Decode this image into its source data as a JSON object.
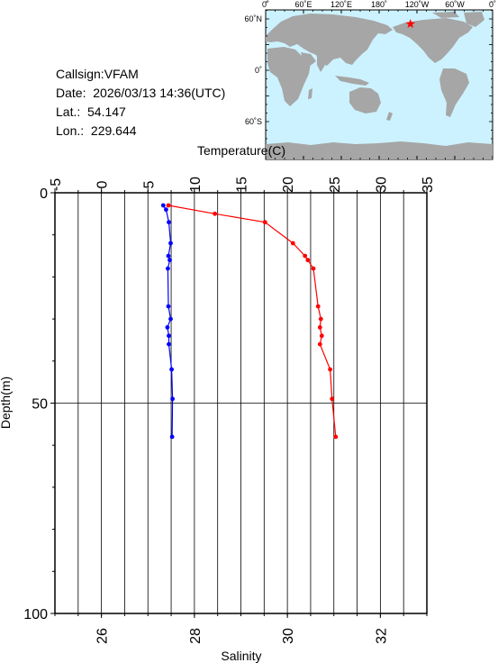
{
  "meta": {
    "callsign": "Callsign:VFAM",
    "date": "Date:  2026/03/13 14:36(UTC)",
    "lat": "Lat.:  54.147",
    "lon": "Lon.:  229.644"
  },
  "map": {
    "top_ticks": [
      "0˚",
      "60˚E",
      "120˚E",
      "180˚",
      "120˚W",
      "60˚W",
      "0˚"
    ],
    "lat_ticks": [
      "60˚N",
      "0˚",
      "60˚S"
    ],
    "marker": {
      "lat": 54.147,
      "lon": 229.644
    },
    "colors": {
      "ocean": "#ccf2ff",
      "land": "#a6a6a6",
      "marker": "#ff0000"
    }
  },
  "chart_data": {
    "type": "line",
    "ylabel": "Depth(m)",
    "ylim": [
      0,
      100
    ],
    "y_inverted": true,
    "yticks": [
      0,
      50,
      100
    ],
    "grid": true,
    "temperature_axis": {
      "label": "Temperature(C)",
      "range": [
        -5,
        35
      ],
      "ticks": [
        -5,
        0,
        5,
        10,
        15,
        20,
        25,
        30,
        35
      ]
    },
    "salinity_axis": {
      "label": "Salinity",
      "range": [
        25,
        33
      ],
      "ticks": [
        26,
        28,
        30,
        32
      ]
    },
    "series": [
      {
        "axis": "temperature",
        "color": "#ff0000",
        "points": [
          {
            "x": 7.2,
            "depth": 3
          },
          {
            "x": 12.2,
            "depth": 5
          },
          {
            "x": 17.6,
            "depth": 7
          },
          {
            "x": 20.6,
            "depth": 12
          },
          {
            "x": 21.9,
            "depth": 15
          },
          {
            "x": 22.2,
            "depth": 16
          },
          {
            "x": 22.8,
            "depth": 18
          },
          {
            "x": 23.3,
            "depth": 27
          },
          {
            "x": 23.6,
            "depth": 30
          },
          {
            "x": 23.5,
            "depth": 32
          },
          {
            "x": 23.7,
            "depth": 34
          },
          {
            "x": 23.5,
            "depth": 36
          },
          {
            "x": 24.6,
            "depth": 42
          },
          {
            "x": 24.8,
            "depth": 49
          },
          {
            "x": 25.2,
            "depth": 58
          }
        ]
      },
      {
        "axis": "salinity",
        "color": "#0000ff",
        "points": [
          {
            "x": 27.33,
            "depth": 3
          },
          {
            "x": 27.39,
            "depth": 4
          },
          {
            "x": 27.45,
            "depth": 7
          },
          {
            "x": 27.49,
            "depth": 12
          },
          {
            "x": 27.44,
            "depth": 15
          },
          {
            "x": 27.47,
            "depth": 16
          },
          {
            "x": 27.43,
            "depth": 18
          },
          {
            "x": 27.44,
            "depth": 27
          },
          {
            "x": 27.49,
            "depth": 30
          },
          {
            "x": 27.42,
            "depth": 32
          },
          {
            "x": 27.45,
            "depth": 34
          },
          {
            "x": 27.45,
            "depth": 36
          },
          {
            "x": 27.51,
            "depth": 42
          },
          {
            "x": 27.53,
            "depth": 49
          },
          {
            "x": 27.52,
            "depth": 58
          }
        ]
      }
    ]
  }
}
